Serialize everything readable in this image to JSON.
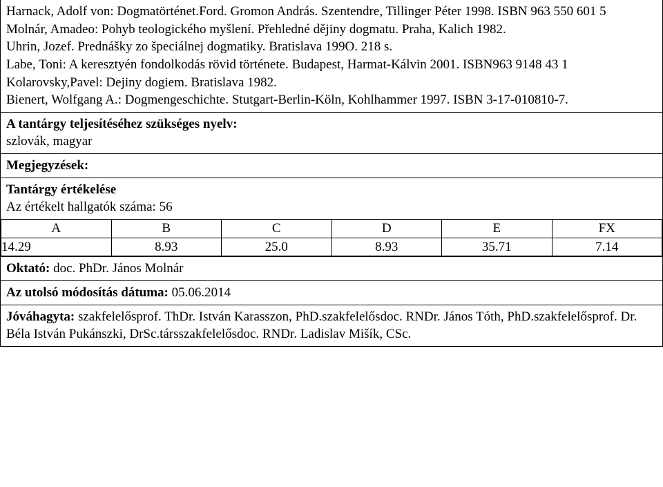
{
  "bibliography": "Harnack, Adolf von: Dogmatörténet.Ford. Gromon András. Szentendre, Tillinger Péter 1998. ISBN 963 550 601 5\nMolnár, Amadeo: Pohyb teologického myšlení. Přehledné dějiny dogmatu. Praha, Kalich 1982.\nUhrin, Jozef. Prednášky zo špeciálnej dogmatiky. Bratislava 199O. 218 s.\nLabe, Toni: A keresztyén fondolkodás rövid története. Budapest, Harmat-Kálvin 2001. ISBN963 9148 43 1\nKolarovsky,Pavel: Dejiny dogiem. Bratislava 1982.\nBienert, Wolfgang A.: Dogmengeschichte. Stutgart-Berlin-Köln, Kohlhammer 1997. ISBN 3-17-010810-7.",
  "language_label": "A tantárgy teljesítéséhez szükséges nyelv:",
  "language_value": "szlovák, magyar",
  "notes_label": "Megjegyzések:",
  "evaluation_label": "Tantárgy értékelése",
  "evaluation_count": "Az értékelt hallgatók száma: 56",
  "grades": {
    "headers": [
      "A",
      "B",
      "C",
      "D",
      "E",
      "FX"
    ],
    "values": [
      "14.29",
      "8.93",
      "25.0",
      "8.93",
      "35.71",
      "7.14"
    ]
  },
  "instructor_label": "Oktató:",
  "instructor_value": " doc. PhDr. János Molnár",
  "last_modified_label": "Az utolsó módosítás dátuma:",
  "last_modified_value": " 05.06.2014",
  "approved_label": "Jóváhagyta:",
  "approved_value": " szakfelelősprof. ThDr. István Karasszon, PhD.szakfelelősdoc. RNDr. János Tóth, PhD.szakfelelősprof. Dr. Béla István Pukánszki, DrSc.társszakfelelősdoc. RNDr. Ladislav Mišík, CSc."
}
